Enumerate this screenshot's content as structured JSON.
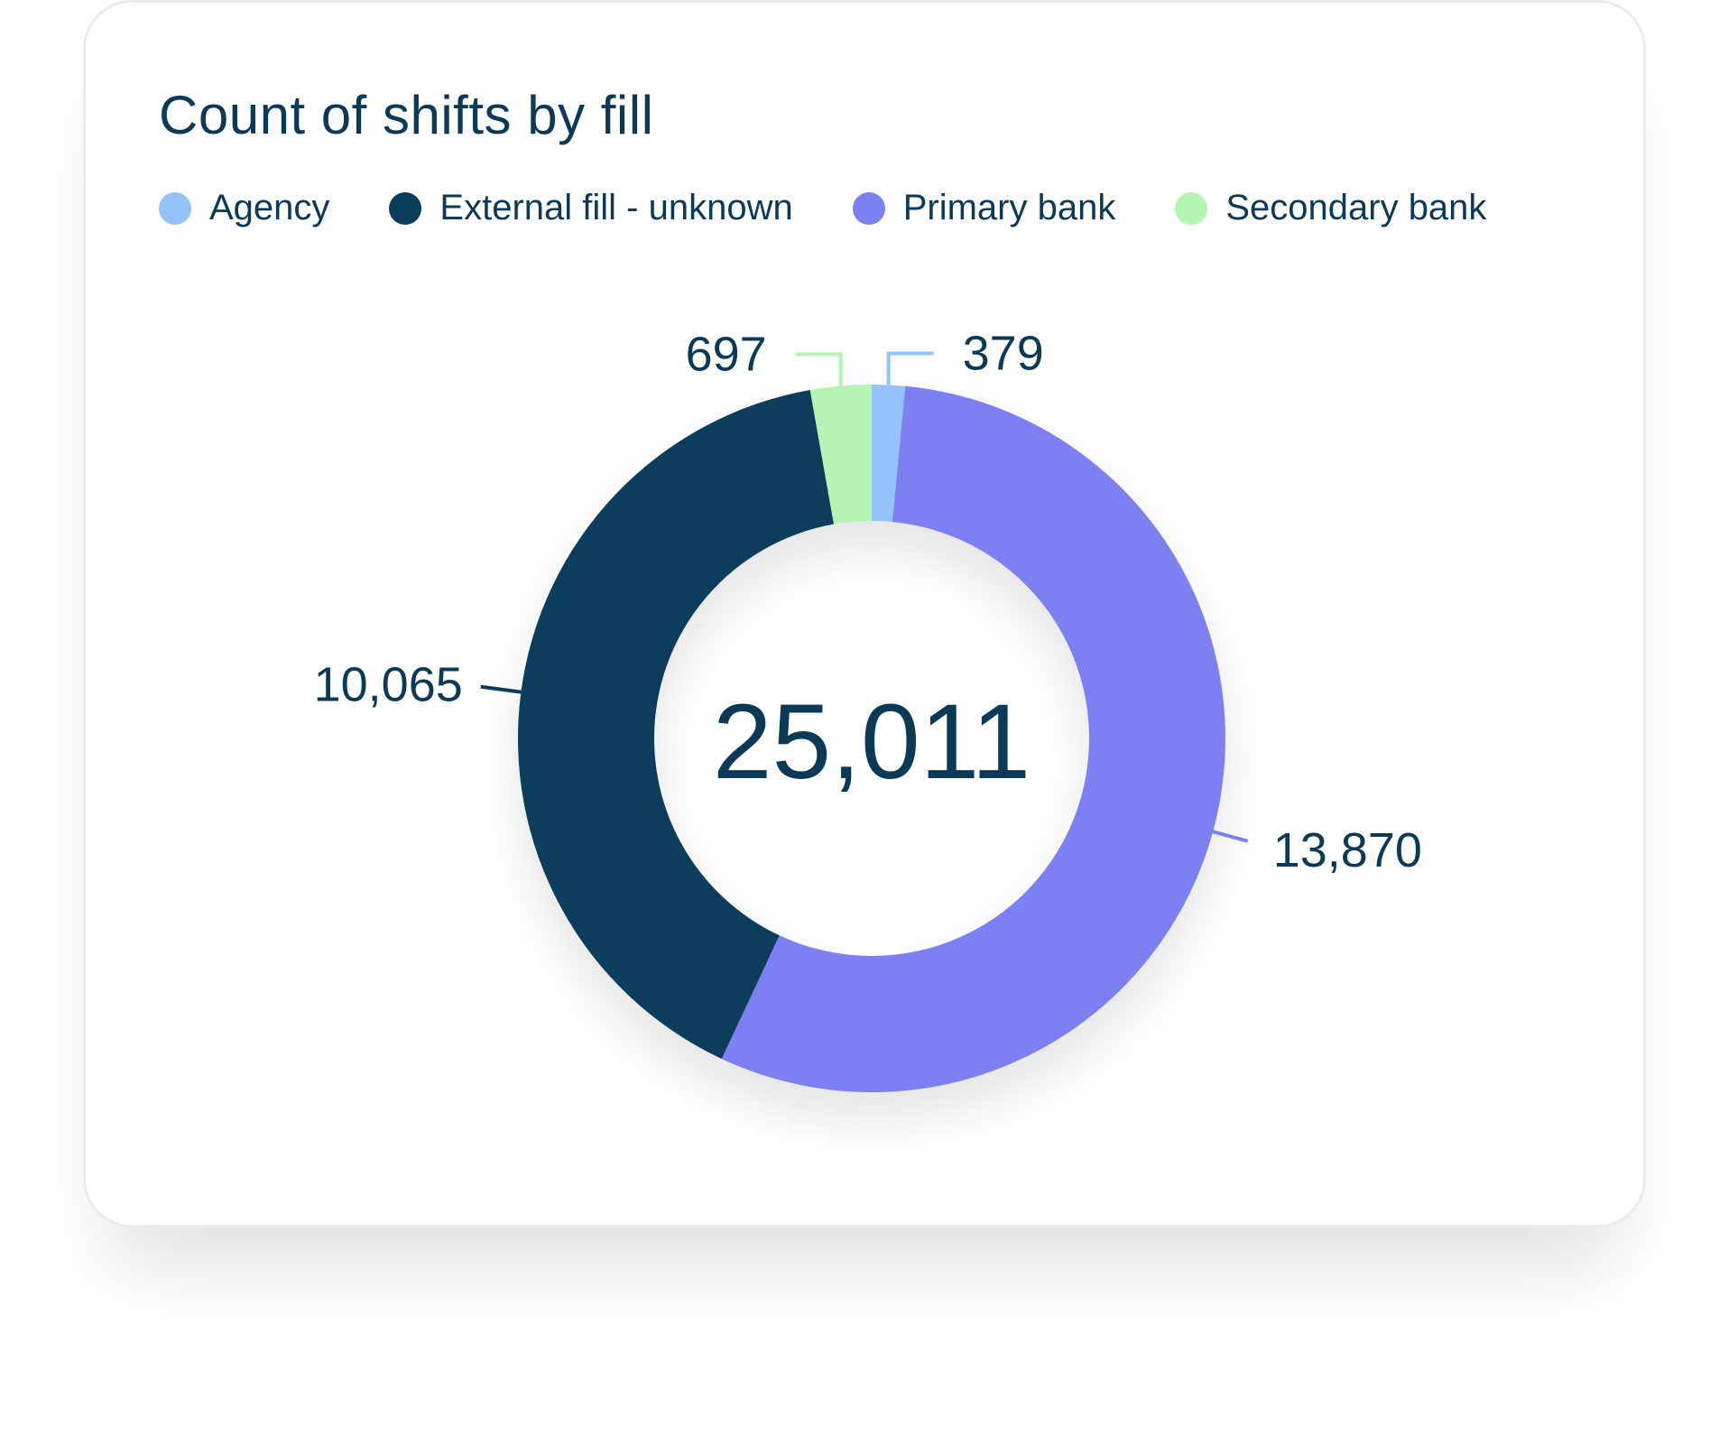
{
  "chart_data": {
    "type": "pie",
    "title": "Count of shifts by fill",
    "center_label": "25,011",
    "legend_position": "top-left",
    "slices": [
      {
        "name": "Agency",
        "value": 379,
        "label": "379",
        "color": "#93c3fa"
      },
      {
        "name": "Primary bank",
        "value": 13870,
        "label": "13,870",
        "color": "#7b80f3"
      },
      {
        "name": "External fill - unknown",
        "value": 10065,
        "label": "10,065",
        "color": "#083d5b"
      },
      {
        "name": "Secondary bank",
        "value": 697,
        "label": "697",
        "color": "#b4f5b4"
      }
    ],
    "legend": [
      "Agency",
      "External fill - unknown",
      "Primary bank",
      "Secondary bank"
    ]
  },
  "colors": {
    "text": "#0b3a58",
    "agency": "#93c3fa",
    "external": "#083d5b",
    "primary": "#7b80f3",
    "secondary": "#b4f5b4"
  }
}
